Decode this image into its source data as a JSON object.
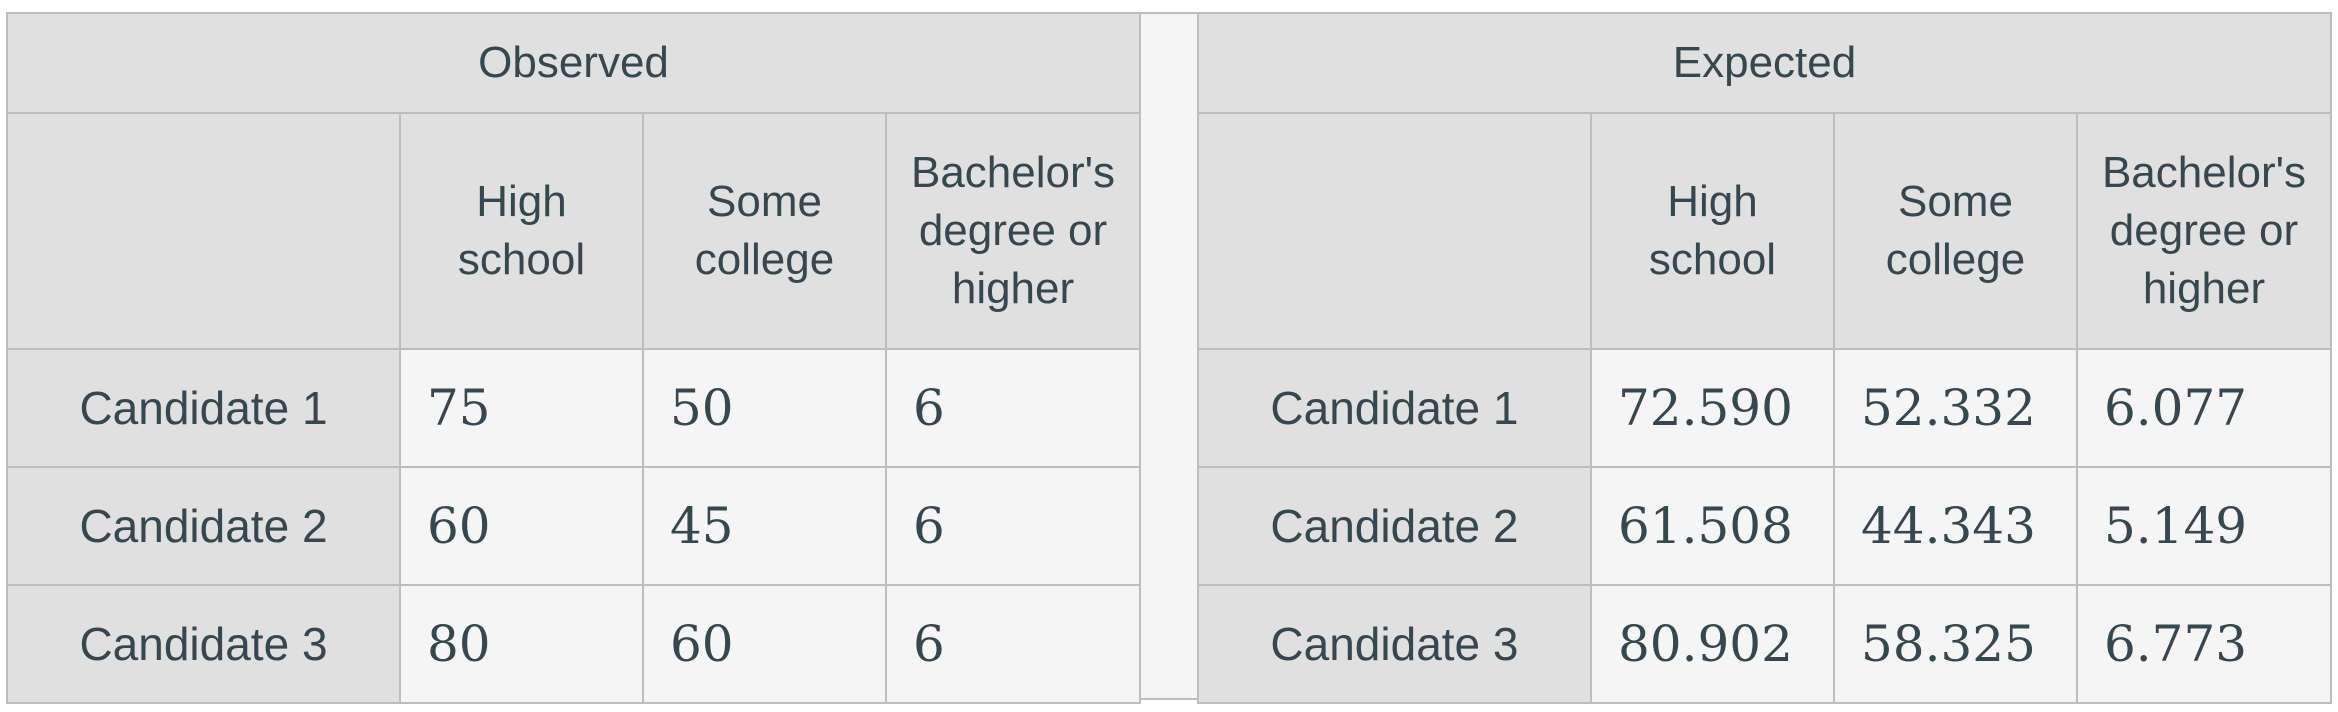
{
  "observed": {
    "title": "Observed",
    "columns": [
      "High school",
      "Some college",
      "Bachelor's degree or higher"
    ],
    "rows": [
      {
        "label": "Candidate 1",
        "values": [
          "75",
          "50",
          "6"
        ]
      },
      {
        "label": "Candidate 2",
        "values": [
          "60",
          "45",
          "6"
        ]
      },
      {
        "label": "Candidate 3",
        "values": [
          "80",
          "60",
          "6"
        ]
      }
    ]
  },
  "expected": {
    "title": "Expected",
    "columns": [
      "High school",
      "Some college",
      "Bachelor's degree or higher"
    ],
    "rows": [
      {
        "label": "Candidate 1",
        "values": [
          "72.590",
          "52.332",
          "6.077"
        ]
      },
      {
        "label": "Candidate 2",
        "values": [
          "61.508",
          "44.343",
          "5.149"
        ]
      },
      {
        "label": "Candidate 3",
        "values": [
          "80.902",
          "58.325",
          "6.773"
        ]
      }
    ]
  }
}
